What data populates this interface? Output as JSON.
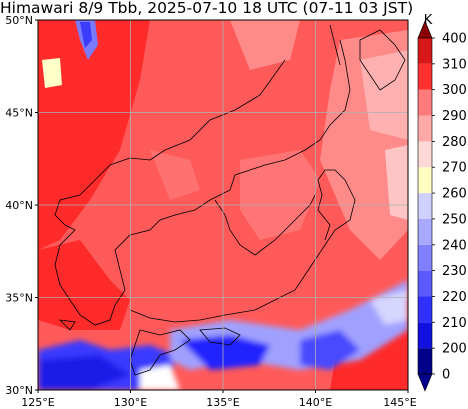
{
  "title": "Himawari 8/9 Tbb, 2025-07-10 18 UTC (07-11 03 JST)",
  "map": {
    "lat_range": [
      30,
      50
    ],
    "lon_range": [
      125,
      145
    ],
    "lat_ticks": [
      "30°N",
      "35°N",
      "40°N",
      "45°N",
      "50°N"
    ],
    "lon_ticks": [
      "125°E",
      "130°E",
      "135°E",
      "140°E",
      "145°E"
    ],
    "gridlines": true
  },
  "colorbar": {
    "unit": "K",
    "tick_labels": [
      "0",
      "200",
      "210",
      "220",
      "230",
      "240",
      "250",
      "260",
      "270",
      "280",
      "290",
      "300",
      "310",
      "400"
    ],
    "colors": [
      "#00008b",
      "#1010e0",
      "#3030ff",
      "#5a5aff",
      "#8080ff",
      "#a8a8ff",
      "#d0d0ff",
      "#ffffc0",
      "#ffd8d8",
      "#ffa8a8",
      "#ff7a7a",
      "#ff3030",
      "#d81818",
      "#8b0000"
    ],
    "extend_bottom_color": "#00008b",
    "extend_top_color": "#8b0000"
  }
}
